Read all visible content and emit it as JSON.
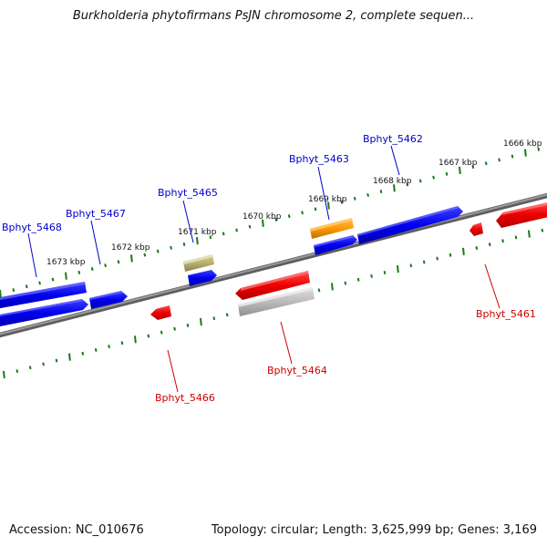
{
  "title": "Burkholderia phytofirmans PsJN chromosome 2, complete sequen...",
  "footer": {
    "accession": "Accession: NC_010676",
    "summary": "Topology: circular; Length: 3,625,999 bp; Genes: 3,169"
  },
  "kbp_labels": [
    "1666 kbp",
    "1667 kbp",
    "1668 kbp",
    "1669 kbp",
    "1670 kbp",
    "1671 kbp",
    "1672 kbp",
    "1673 kbp"
  ],
  "genes_top": [
    "Bphyt_5462",
    "Bphyt_5463",
    "Bphyt_5465",
    "Bphyt_5467",
    "Bphyt_5468"
  ],
  "genes_bottom": [
    "Bphyt_5461",
    "Bphyt_5464",
    "Bphyt_5466"
  ],
  "colors": {
    "forward_gene": "#0000ee",
    "reverse_gene": "#ee0000",
    "orange_gene": "#ff9900",
    "olive_gene": "#b8b070",
    "gray_gene": "#bbbbbb",
    "backbone": "#888888",
    "tick": "#1a7a1a",
    "top_label": "#0000cc",
    "bottom_label": "#cc0000"
  }
}
